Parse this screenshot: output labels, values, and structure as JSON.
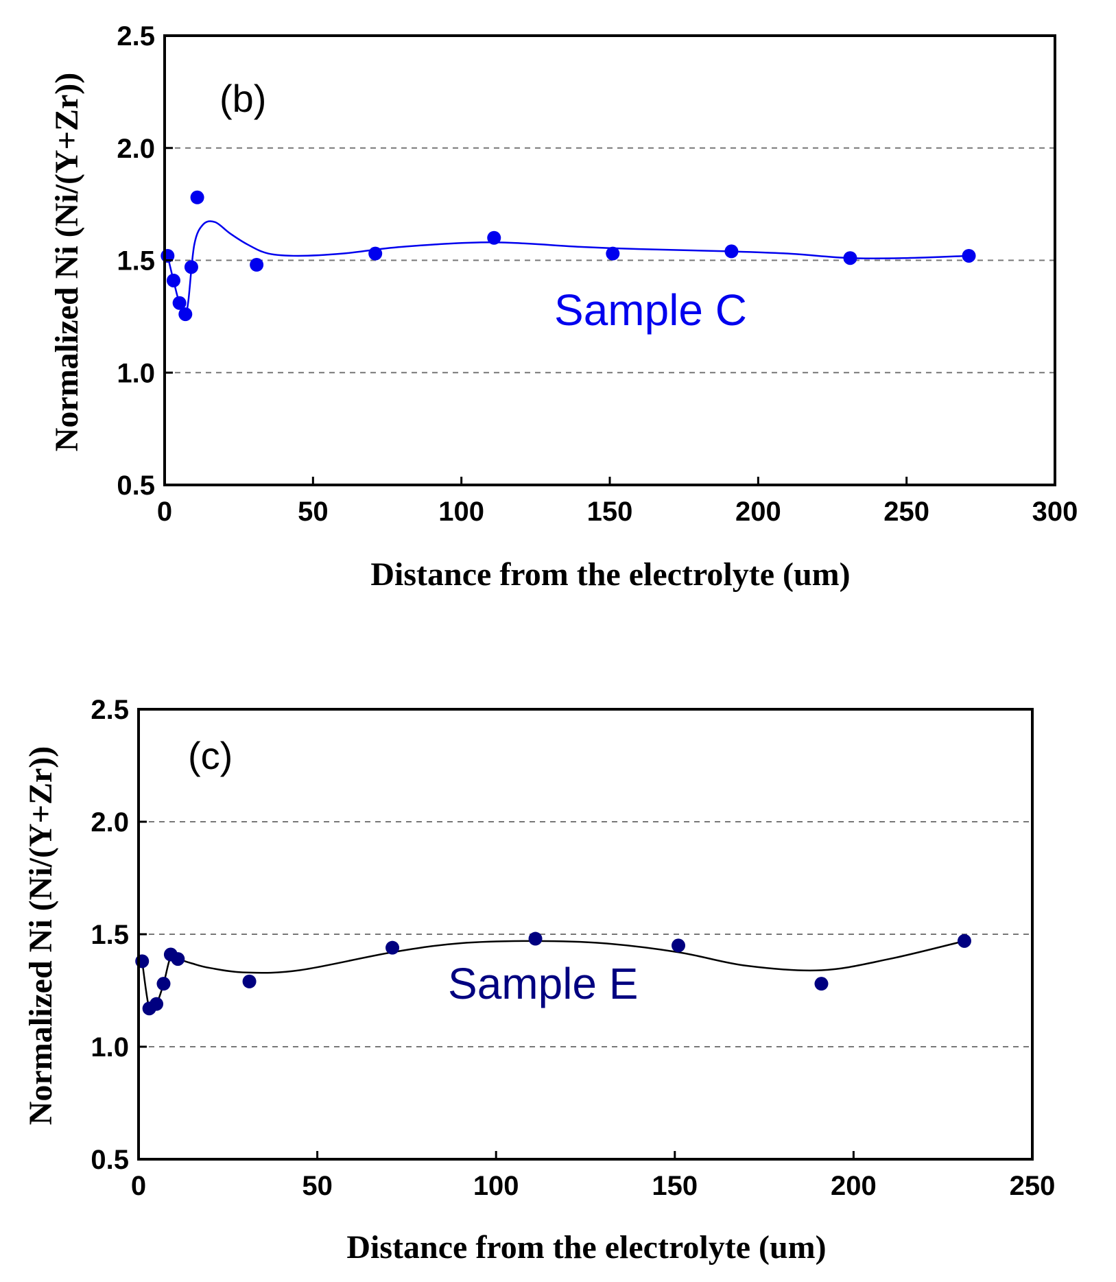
{
  "chart_data": [
    {
      "type": "scatter",
      "panel_label": "(b)",
      "series_label": "Sample C",
      "xlabel": "Distance from the electrolyte (um)",
      "ylabel": "Normalized Ni (Ni/(Y+Zr))",
      "xlim": [
        0,
        300
      ],
      "ylim": [
        0.5,
        2.5
      ],
      "xticks": [
        "0",
        "50",
        "100",
        "150",
        "200",
        "250",
        "300"
      ],
      "yticks": [
        "0.5",
        "1.0",
        "1.5",
        "2.0",
        "2.5"
      ],
      "grid": "dashed horizontal lines at 1.0, 1.5, 2.0",
      "color": "#0000ee",
      "x": [
        1,
        3,
        5,
        7,
        9,
        11,
        31,
        71,
        111,
        151,
        191,
        231,
        271
      ],
      "y": [
        1.52,
        1.41,
        1.31,
        1.26,
        1.47,
        1.78,
        1.48,
        1.53,
        1.6,
        1.53,
        1.54,
        1.51,
        1.52
      ],
      "fit_curve": {
        "x": [
          1,
          3,
          5,
          7,
          8,
          10,
          13,
          17,
          22,
          28,
          35,
          45,
          60,
          80,
          110,
          140,
          160,
          190,
          210,
          231,
          250,
          271
        ],
        "y": [
          1.52,
          1.41,
          1.31,
          1.27,
          1.32,
          1.57,
          1.66,
          1.67,
          1.62,
          1.57,
          1.53,
          1.52,
          1.53,
          1.56,
          1.58,
          1.56,
          1.55,
          1.54,
          1.53,
          1.51,
          1.51,
          1.52
        ]
      }
    },
    {
      "type": "scatter",
      "panel_label": "(c)",
      "series_label": "Sample E",
      "xlabel": "Distance from the electrolyte (um)",
      "ylabel": "Normalized Ni (Ni/(Y+Zr))",
      "xlim": [
        0,
        250
      ],
      "ylim": [
        0.5,
        2.5
      ],
      "xticks": [
        "0",
        "50",
        "100",
        "150",
        "200",
        "250"
      ],
      "yticks": [
        "0.5",
        "1.0",
        "1.5",
        "2.0",
        "2.5"
      ],
      "grid": "dashed horizontal lines at 1.0, 1.5, 2.0",
      "color": "#000080",
      "x": [
        1,
        3,
        5,
        7,
        9,
        11,
        31,
        71,
        111,
        151,
        191,
        231
      ],
      "y": [
        1.38,
        1.17,
        1.19,
        1.28,
        1.41,
        1.39,
        1.29,
        1.44,
        1.48,
        1.45,
        1.28,
        1.47
      ],
      "fit_curve": {
        "x": [
          1,
          3,
          5,
          7,
          9,
          11,
          15,
          20,
          30,
          45,
          71,
          90,
          111,
          130,
          151,
          170,
          191,
          210,
          231
        ],
        "y": [
          1.38,
          1.17,
          1.19,
          1.28,
          1.4,
          1.39,
          1.37,
          1.35,
          1.33,
          1.34,
          1.42,
          1.46,
          1.47,
          1.46,
          1.42,
          1.36,
          1.34,
          1.39,
          1.47
        ]
      }
    }
  ]
}
